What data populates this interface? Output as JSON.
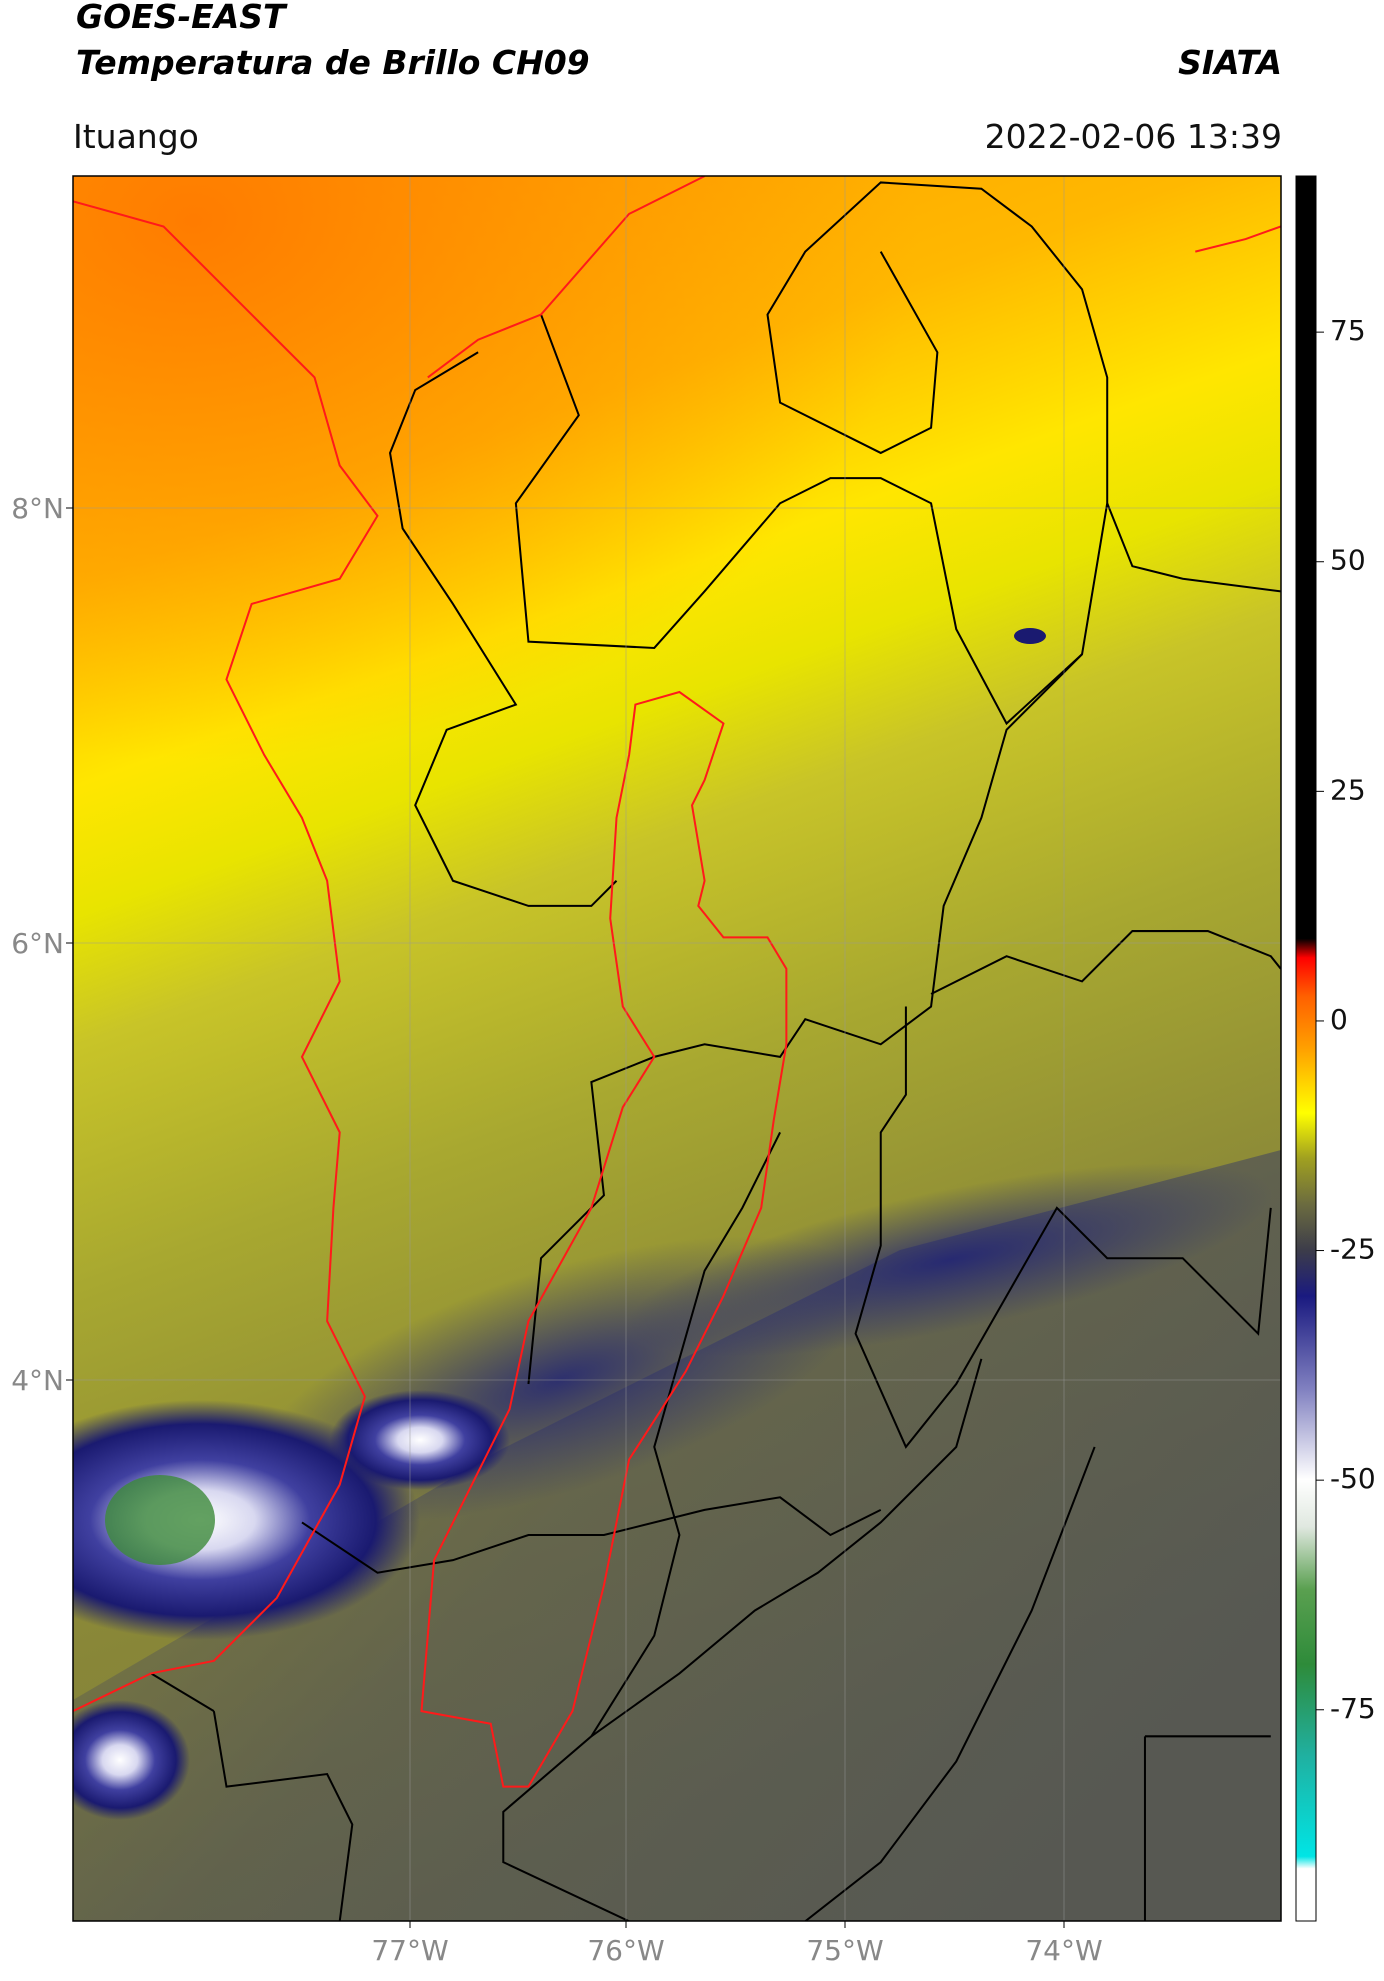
{
  "header": {
    "title": "GOES-EAST",
    "subtitle": "Temperatura de Brillo CH09",
    "source": "SIATA",
    "location": "Ituango",
    "timestamp": "2022-02-06 13:39"
  },
  "map": {
    "lat_labels": [
      "8°N",
      "6°N",
      "4°N"
    ],
    "lon_labels": [
      "77°W",
      "76°W",
      "75°W",
      "74°W"
    ]
  },
  "colorbar": {
    "range": [
      -98,
      92
    ],
    "ticks": [
      75,
      50,
      25,
      0,
      -25,
      -50,
      -75
    ]
  }
}
